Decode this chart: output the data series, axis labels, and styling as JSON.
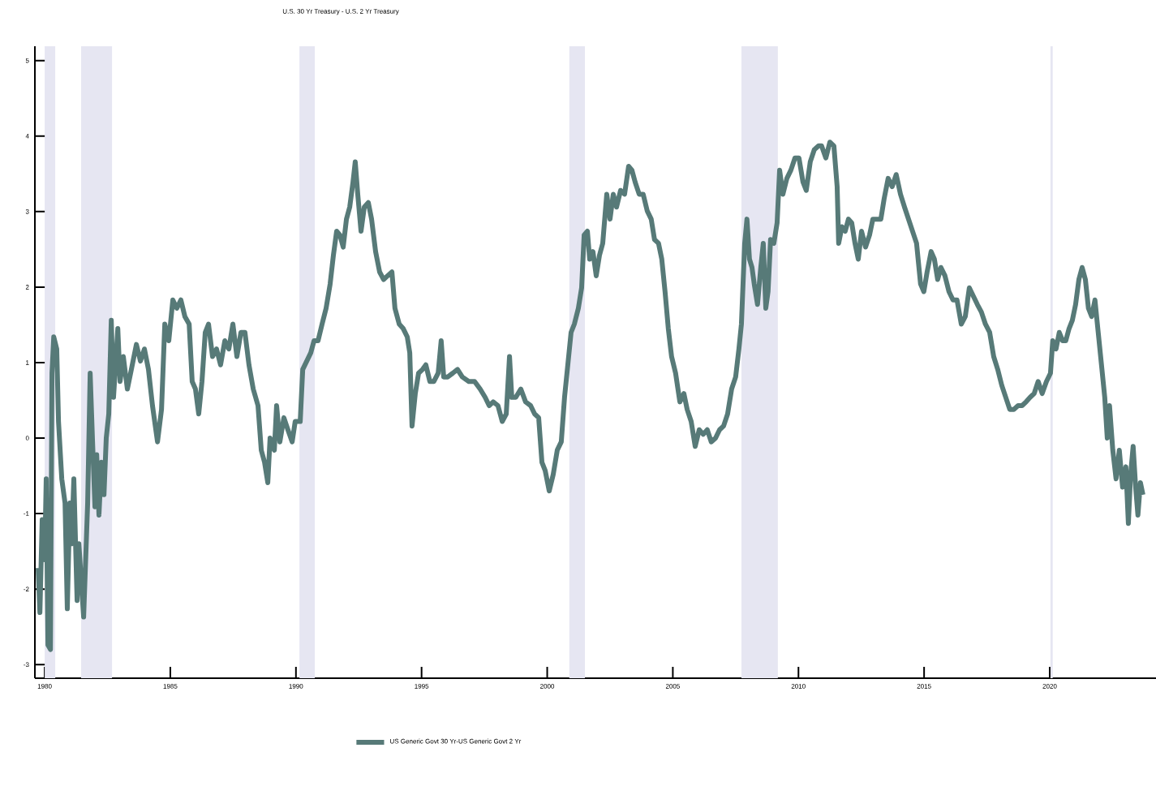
{
  "chart_data": {
    "type": "line",
    "title": "U.S. 30 Yr Treasury - U.S. 2 Yr Treasury",
    "x": [
      1979.74,
      1979.81,
      1979.9,
      1980.0,
      1980.06,
      1980.13,
      1980.23,
      1980.29,
      1980.36,
      1980.48,
      1980.55,
      1980.68,
      1980.81,
      1980.9,
      1981.0,
      1981.07,
      1981.16,
      1981.29,
      1981.36,
      1981.55,
      1981.71,
      1981.81,
      1981.9,
      1982.0,
      1982.07,
      1982.16,
      1982.26,
      1982.36,
      1982.45,
      1982.55,
      1982.65,
      1982.74,
      1982.91,
      1983.0,
      1983.13,
      1983.29,
      1983.45,
      1983.65,
      1983.81,
      1983.97,
      1984.13,
      1984.29,
      1984.49,
      1984.65,
      1984.78,
      1984.94,
      1985.1,
      1985.26,
      1985.42,
      1985.58,
      1985.75,
      1985.87,
      1986.0,
      1986.13,
      1986.26,
      1986.39,
      1986.52,
      1986.68,
      1986.84,
      1987.0,
      1987.17,
      1987.33,
      1987.49,
      1987.65,
      1987.81,
      1987.97,
      1988.13,
      1988.3,
      1988.49,
      1988.62,
      1988.75,
      1988.88,
      1988.97,
      1989.14,
      1989.23,
      1989.36,
      1989.52,
      1989.68,
      1989.85,
      1989.97,
      1990.17,
      1990.27,
      1990.43,
      1990.59,
      1990.72,
      1990.88,
      1991.04,
      1991.2,
      1991.36,
      1991.49,
      1991.62,
      1991.75,
      1991.88,
      1992.01,
      1992.14,
      1992.27,
      1992.36,
      1992.46,
      1992.59,
      1992.72,
      1992.88,
      1993.01,
      1993.17,
      1993.33,
      1993.49,
      1993.65,
      1993.82,
      1993.94,
      1994.11,
      1994.27,
      1994.43,
      1994.53,
      1994.62,
      1994.75,
      1994.88,
      1995.04,
      1995.17,
      1995.33,
      1995.49,
      1995.66,
      1995.78,
      1995.88,
      1996.04,
      1996.24,
      1996.43,
      1996.62,
      1996.88,
      1997.11,
      1997.33,
      1997.53,
      1997.69,
      1997.85,
      1998.04,
      1998.21,
      1998.37,
      1998.5,
      1998.59,
      1998.75,
      1998.95,
      1999.14,
      1999.34,
      1999.5,
      1999.66,
      1999.79,
      1999.92,
      2000.08,
      2000.24,
      2000.4,
      2000.56,
      2000.69,
      2000.82,
      2000.95,
      2001.08,
      2001.24,
      2001.37,
      2001.47,
      2001.6,
      2001.69,
      2001.82,
      2001.95,
      2002.08,
      2002.21,
      2002.37,
      2002.5,
      2002.63,
      2002.76,
      2002.92,
      2003.08,
      2003.24,
      2003.37,
      2003.5,
      2003.66,
      2003.82,
      2003.98,
      2004.14,
      2004.27,
      2004.43,
      2004.56,
      2004.69,
      2004.82,
      2004.95,
      2005.11,
      2005.28,
      2005.44,
      2005.57,
      2005.73,
      2005.89,
      2006.05,
      2006.21,
      2006.37,
      2006.53,
      2006.7,
      2006.86,
      2007.02,
      2007.18,
      2007.34,
      2007.5,
      2007.63,
      2007.73,
      2007.86,
      2007.95,
      2008.05,
      2008.15,
      2008.24,
      2008.37,
      2008.5,
      2008.6,
      2008.7,
      2008.79,
      2008.89,
      2009.02,
      2009.15,
      2009.25,
      2009.38,
      2009.54,
      2009.7,
      2009.86,
      2010.02,
      2010.18,
      2010.31,
      2010.47,
      2010.63,
      2010.8,
      2010.92,
      2011.09,
      2011.25,
      2011.41,
      2011.54,
      2011.6,
      2011.73,
      2011.86,
      2011.99,
      2012.12,
      2012.25,
      2012.38,
      2012.51,
      2012.67,
      2012.83,
      2012.96,
      2013.12,
      2013.28,
      2013.41,
      2013.57,
      2013.73,
      2013.89,
      2014.06,
      2014.22,
      2014.38,
      2014.54,
      2014.7,
      2014.86,
      2014.99,
      2015.12,
      2015.28,
      2015.41,
      2015.54,
      2015.67,
      2015.83,
      2015.99,
      2016.15,
      2016.31,
      2016.48,
      2016.64,
      2016.8,
      2016.96,
      2017.12,
      2017.28,
      2017.44,
      2017.61,
      2017.77,
      2017.93,
      2018.09,
      2018.25,
      2018.41,
      2018.57,
      2018.74,
      2018.9,
      2019.06,
      2019.22,
      2019.38,
      2019.54,
      2019.7,
      2019.87,
      2020.03,
      2020.12,
      2020.25,
      2020.38,
      2020.51,
      2020.64,
      2020.77,
      2020.9,
      2021.03,
      2021.16,
      2021.29,
      2021.42,
      2021.54,
      2021.67,
      2021.8,
      2021.93,
      2022.06,
      2022.19,
      2022.29,
      2022.38,
      2022.51,
      2022.64,
      2022.77,
      2022.9,
      2023.03,
      2023.13,
      2023.22,
      2023.32,
      2023.42,
      2023.51,
      2023.61,
      2023.71
    ],
    "series": [
      {
        "name": "US Generic Govt 30 Yr-US Generic Govt 2 Yr",
        "color": "#577a78",
        "values": [
          -1.72,
          -2.31,
          -1.08,
          -1.61,
          -0.54,
          -2.74,
          -2.8,
          0.86,
          1.34,
          1.18,
          0.22,
          -0.54,
          -0.86,
          -2.26,
          -0.86,
          -1.4,
          -0.54,
          -2.15,
          -1.4,
          -2.37,
          -0.86,
          0.86,
          0.0,
          -0.91,
          -0.22,
          -1.02,
          -0.32,
          -0.75,
          0.0,
          0.32,
          1.56,
          0.54,
          1.45,
          0.75,
          1.08,
          0.65,
          0.91,
          1.24,
          1.02,
          1.18,
          0.91,
          0.43,
          -0.05,
          0.38,
          1.51,
          1.29,
          1.83,
          1.72,
          1.83,
          1.61,
          1.51,
          0.75,
          0.65,
          0.32,
          0.75,
          1.4,
          1.51,
          1.08,
          1.18,
          0.97,
          1.29,
          1.18,
          1.51,
          1.08,
          1.4,
          1.4,
          0.97,
          0.65,
          0.43,
          -0.16,
          -0.32,
          -0.59,
          0.0,
          -0.16,
          0.43,
          -0.05,
          0.27,
          0.11,
          -0.05,
          0.22,
          0.22,
          0.91,
          1.02,
          1.13,
          1.29,
          1.29,
          1.51,
          1.72,
          2.04,
          2.42,
          2.74,
          2.69,
          2.53,
          2.9,
          3.06,
          3.39,
          3.66,
          3.23,
          2.74,
          3.06,
          3.12,
          2.9,
          2.47,
          2.2,
          2.1,
          2.15,
          2.2,
          1.72,
          1.51,
          1.45,
          1.34,
          1.13,
          0.16,
          0.59,
          0.86,
          0.91,
          0.97,
          0.75,
          0.75,
          0.86,
          1.29,
          0.81,
          0.81,
          0.86,
          0.91,
          0.81,
          0.75,
          0.75,
          0.65,
          0.54,
          0.43,
          0.48,
          0.43,
          0.22,
          0.32,
          1.08,
          0.54,
          0.54,
          0.65,
          0.48,
          0.43,
          0.32,
          0.27,
          -0.32,
          -0.43,
          -0.7,
          -0.48,
          -0.16,
          -0.05,
          0.54,
          0.97,
          1.4,
          1.51,
          1.72,
          1.99,
          2.69,
          2.74,
          2.37,
          2.47,
          2.15,
          2.42,
          2.58,
          3.23,
          2.9,
          3.23,
          3.06,
          3.28,
          3.23,
          3.6,
          3.55,
          3.39,
          3.23,
          3.23,
          3.01,
          2.9,
          2.63,
          2.58,
          2.37,
          1.94,
          1.45,
          1.08,
          0.86,
          0.48,
          0.59,
          0.38,
          0.22,
          -0.11,
          0.11,
          0.05,
          0.11,
          -0.05,
          0.0,
          0.11,
          0.16,
          0.32,
          0.65,
          0.81,
          1.18,
          1.51,
          2.58,
          2.9,
          2.37,
          2.26,
          2.04,
          1.77,
          2.26,
          2.58,
          1.72,
          1.94,
          2.63,
          2.58,
          2.85,
          3.55,
          3.23,
          3.44,
          3.55,
          3.71,
          3.71,
          3.39,
          3.28,
          3.66,
          3.82,
          3.87,
          3.87,
          3.71,
          3.92,
          3.87,
          3.33,
          2.58,
          2.8,
          2.74,
          2.9,
          2.85,
          2.58,
          2.37,
          2.74,
          2.53,
          2.69,
          2.9,
          2.9,
          2.9,
          3.17,
          3.44,
          3.33,
          3.49,
          3.23,
          3.06,
          2.9,
          2.74,
          2.58,
          2.04,
          1.94,
          2.2,
          2.47,
          2.37,
          2.1,
          2.26,
          2.15,
          1.94,
          1.83,
          1.83,
          1.51,
          1.61,
          1.99,
          1.88,
          1.77,
          1.67,
          1.51,
          1.4,
          1.08,
          0.91,
          0.7,
          0.54,
          0.38,
          0.38,
          0.43,
          0.43,
          0.48,
          0.54,
          0.59,
          0.75,
          0.59,
          0.75,
          0.86,
          1.29,
          1.18,
          1.4,
          1.29,
          1.29,
          1.45,
          1.56,
          1.77,
          2.1,
          2.26,
          2.1,
          1.72,
          1.61,
          1.83,
          1.4,
          0.97,
          0.54,
          0.0,
          0.43,
          -0.16,
          -0.54,
          -0.16,
          -0.65,
          -0.38,
          -1.13,
          -0.48,
          -0.11,
          -0.65,
          -1.02,
          -0.59,
          -0.75
        ]
      }
    ],
    "xlim": [
      1979.61,
      2024.23
    ],
    "ylim": [
      -3.18,
      5.19
    ],
    "xticks": [
      1980,
      1985,
      1990,
      1995,
      2000,
      2005,
      2010,
      2015,
      2020
    ],
    "yticks": [
      -3,
      -2,
      -1,
      0,
      1,
      2,
      3,
      4,
      5
    ],
    "bands": [
      {
        "axis": "x",
        "from": 1980.0,
        "to": 1980.42,
        "color": "#e6e6f2"
      },
      {
        "axis": "x",
        "from": 1981.45,
        "to": 1982.68,
        "color": "#e6e6f2"
      },
      {
        "axis": "x",
        "from": 1990.14,
        "to": 1990.75,
        "color": "#e6e6f2"
      },
      {
        "axis": "x",
        "from": 2000.88,
        "to": 2001.5,
        "color": "#e6e6f2"
      },
      {
        "axis": "x",
        "from": 2007.73,
        "to": 2009.18,
        "color": "#e6e6f2"
      },
      {
        "axis": "x",
        "from": 2020.03,
        "to": 2020.12,
        "color": "#e6e6f2"
      }
    ],
    "grid": false,
    "legend": "bottom",
    "marker": "none",
    "line_style": "solid"
  }
}
